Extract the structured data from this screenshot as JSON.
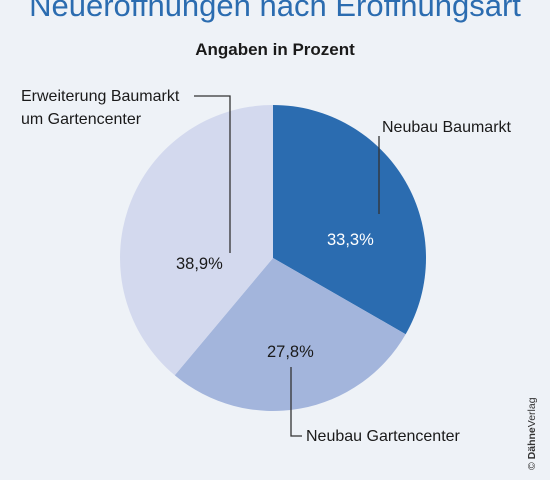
{
  "title": "Neueröffnungen nach Eröffnungsart",
  "subtitle": "Angaben in Prozent",
  "copyright": {
    "symbol": "©",
    "brand": "Dähne",
    "suffix": "Verlag"
  },
  "chart_data": {
    "type": "pie",
    "title": "Neueröffnungen nach Eröffnungsart",
    "subtitle": "Angaben in Prozent",
    "slices": [
      {
        "label": "Neubau Baumarkt",
        "value": 33.3,
        "value_label": "33,3%",
        "color": "#2b6cb0"
      },
      {
        "label": "Neubau Gartencenter",
        "value": 27.8,
        "value_label": "27,8%",
        "color": "#a3b5dc"
      },
      {
        "label": "Erweiterung Baumarkt um Gartencenter",
        "value": 38.9,
        "value_label": "38,9%",
        "color": "#d3d9ee"
      }
    ],
    "start_angle": "12 o'clock",
    "direction": "clockwise"
  }
}
